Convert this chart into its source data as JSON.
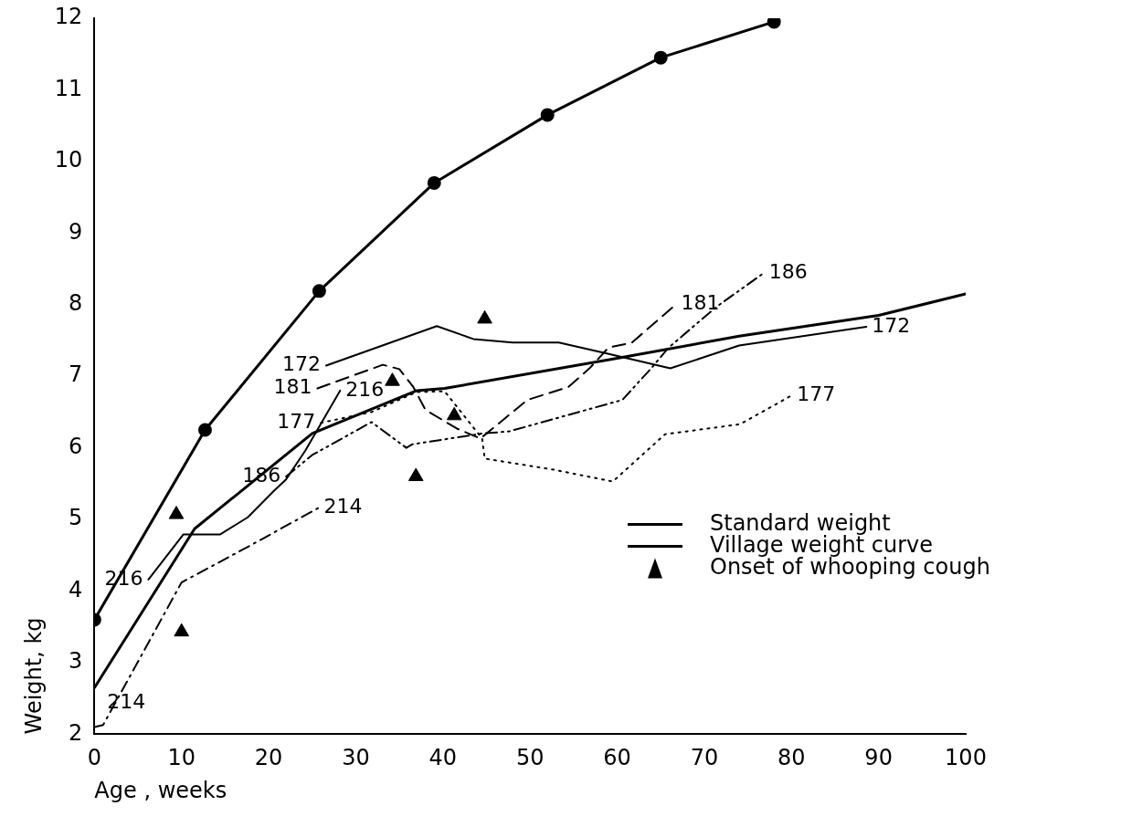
{
  "chart_data": {
    "type": "line",
    "xlabel": "Age , weeks",
    "ylabel": "Weight, kg",
    "xlim": [
      0,
      100
    ],
    "xticks": [
      0,
      10,
      20,
      30,
      40,
      50,
      60,
      70,
      80,
      90,
      100
    ],
    "ylim": [
      2,
      12
    ],
    "yticks": [
      2,
      3,
      4,
      5,
      6,
      7,
      8,
      9,
      10,
      11,
      12
    ],
    "grid": false,
    "legend": "bottom right",
    "series": [
      {
        "name": "Standard weight",
        "color": "#000000",
        "marker": "circle",
        "line_style": "solid",
        "x": [
          0,
          12.7,
          25.8,
          39,
          52,
          65,
          78
        ],
        "values": [
          3.6,
          6.25,
          8.19,
          9.7,
          10.65,
          11.45,
          11.95
        ]
      },
      {
        "name": "Village weight curve",
        "color": "#000000",
        "marker": "none",
        "line_style": "solid",
        "x": [
          0,
          11.5,
          25,
          37,
          40.2,
          60,
          74,
          90,
          100
        ],
        "values": [
          2.65,
          4.87,
          6.2,
          6.8,
          6.83,
          7.25,
          7.56,
          7.85,
          8.15
        ]
      },
      {
        "name": "Onset of whooping cough",
        "type": "scatter",
        "color": "#000000",
        "marker": "triangle",
        "x": [
          9.4,
          10,
          34.2,
          36.9,
          41.3,
          44.8
        ],
        "values": [
          5.07,
          3.43,
          6.93,
          5.6,
          6.45,
          7.8
        ]
      },
      {
        "name": "172",
        "color": "#000000",
        "line_style": "solid",
        "x": [
          26.6,
          39.3,
          43.5,
          48,
          53.3,
          58.7,
          66.1,
          74,
          88.6
        ],
        "values": [
          7.15,
          7.7,
          7.52,
          7.47,
          7.47,
          7.32,
          7.11,
          7.43,
          7.69
        ]
      },
      {
        "name": "181",
        "color": "#000000",
        "line_style": "dashed",
        "x": [
          25.6,
          33.1,
          35,
          36.6,
          38,
          41.6,
          44.3,
          49.7,
          54.4,
          56.9,
          59,
          61.7,
          66.7
        ],
        "values": [
          6.83,
          7.16,
          7.1,
          6.85,
          6.53,
          6.27,
          6.13,
          6.67,
          6.85,
          7.12,
          7.4,
          7.47,
          8.0
        ]
      },
      {
        "name": "216",
        "color": "#000000",
        "line_style": "solid",
        "x": [
          6.2,
          10.2,
          14.4,
          17.6,
          20.6,
          22,
          24.2,
          28.2
        ],
        "values": [
          4.16,
          4.79,
          4.79,
          5.03,
          5.4,
          5.56,
          5.96,
          6.8
        ]
      },
      {
        "name": "177",
        "color": "#000000",
        "line_style": "dotted",
        "x": [
          26,
          31.8,
          37,
          40.2,
          44.5,
          44.8,
          52.5,
          59.5,
          65.5,
          74.1,
          80
        ],
        "values": [
          6.35,
          6.5,
          6.78,
          6.79,
          6.13,
          5.85,
          5.7,
          5.53,
          6.19,
          6.33,
          6.73
        ]
      },
      {
        "name": "186",
        "color": "#000000",
        "line_style": "dashdotdot",
        "x": [
          22,
          25,
          31.8,
          35.8,
          36.5,
          44.5,
          47.6,
          60.6,
          63.9,
          65.9,
          71.4,
          76.8
        ],
        "values": [
          5.6,
          5.9,
          6.36,
          6.0,
          6.05,
          6.2,
          6.23,
          6.67,
          7.11,
          7.4,
          7.97,
          8.44
        ]
      },
      {
        "name": "214",
        "color": "#000000",
        "line_style": "dashdot",
        "x": [
          0,
          1,
          10,
          18.4,
          25.7
        ],
        "values": [
          2.1,
          2.13,
          4.12,
          4.67,
          5.16
        ]
      }
    ]
  }
}
